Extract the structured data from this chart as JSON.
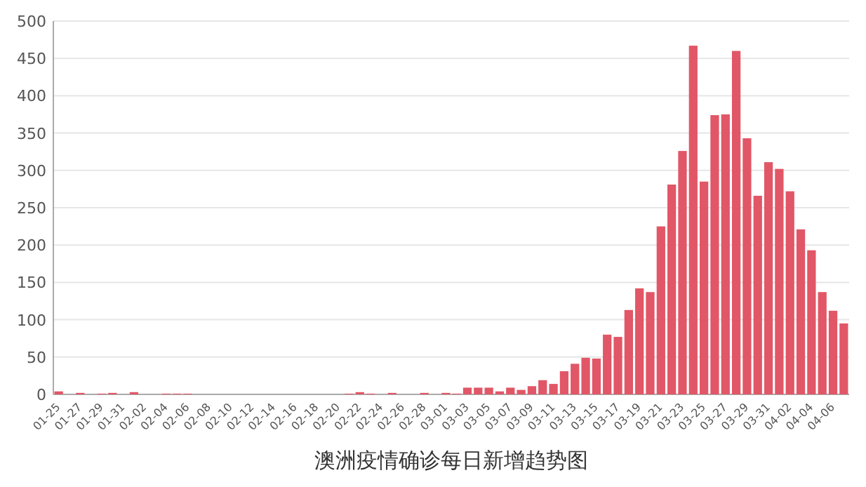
{
  "chart_data": {
    "type": "bar",
    "title": "澳洲疫情确诊每日新增趋势图",
    "categories": [
      "01-25",
      null,
      "01-27",
      null,
      "01-29",
      null,
      "01-31",
      null,
      "02-02",
      null,
      "02-04",
      null,
      "02-06",
      null,
      "02-08",
      null,
      "02-10",
      null,
      "02-12",
      null,
      "02-14",
      null,
      "02-16",
      null,
      "02-18",
      null,
      "02-20",
      null,
      "02-22",
      null,
      "02-24",
      null,
      "02-26",
      null,
      "02-28",
      null,
      "03-01",
      null,
      "03-03",
      null,
      "03-05",
      null,
      "03-07",
      null,
      "03-09",
      null,
      "03-11",
      null,
      "03-13",
      null,
      "03-15",
      null,
      "03-17",
      null,
      "03-19",
      null,
      "03-21",
      null,
      "03-23",
      null,
      "03-25",
      null,
      "03-27",
      null,
      "03-29",
      null,
      "03-31",
      null,
      "04-02",
      null,
      "04-04",
      null,
      "04-06",
      null
    ],
    "values": [
      4,
      0,
      2,
      0,
      1,
      2,
      0,
      3,
      0,
      0,
      1,
      1,
      1,
      0,
      0,
      0,
      0,
      0,
      0,
      0,
      0,
      0,
      0,
      0,
      0,
      0,
      0,
      1,
      3,
      1,
      0,
      2,
      0,
      0,
      2,
      0,
      2,
      1,
      9,
      9,
      9,
      4,
      9,
      6,
      11,
      19,
      14,
      31,
      41,
      49,
      48,
      80,
      77,
      113,
      142,
      137,
      225,
      281,
      326,
      467,
      285,
      374,
      375,
      460,
      343,
      266,
      311,
      302,
      272,
      221,
      193,
      137,
      112,
      95
    ],
    "color": "#e15767",
    "ylim": [
      0,
      500
    ],
    "yticks": [
      0,
      50,
      100,
      150,
      200,
      250,
      300,
      350,
      400,
      450,
      500
    ],
    "grid": "y"
  }
}
